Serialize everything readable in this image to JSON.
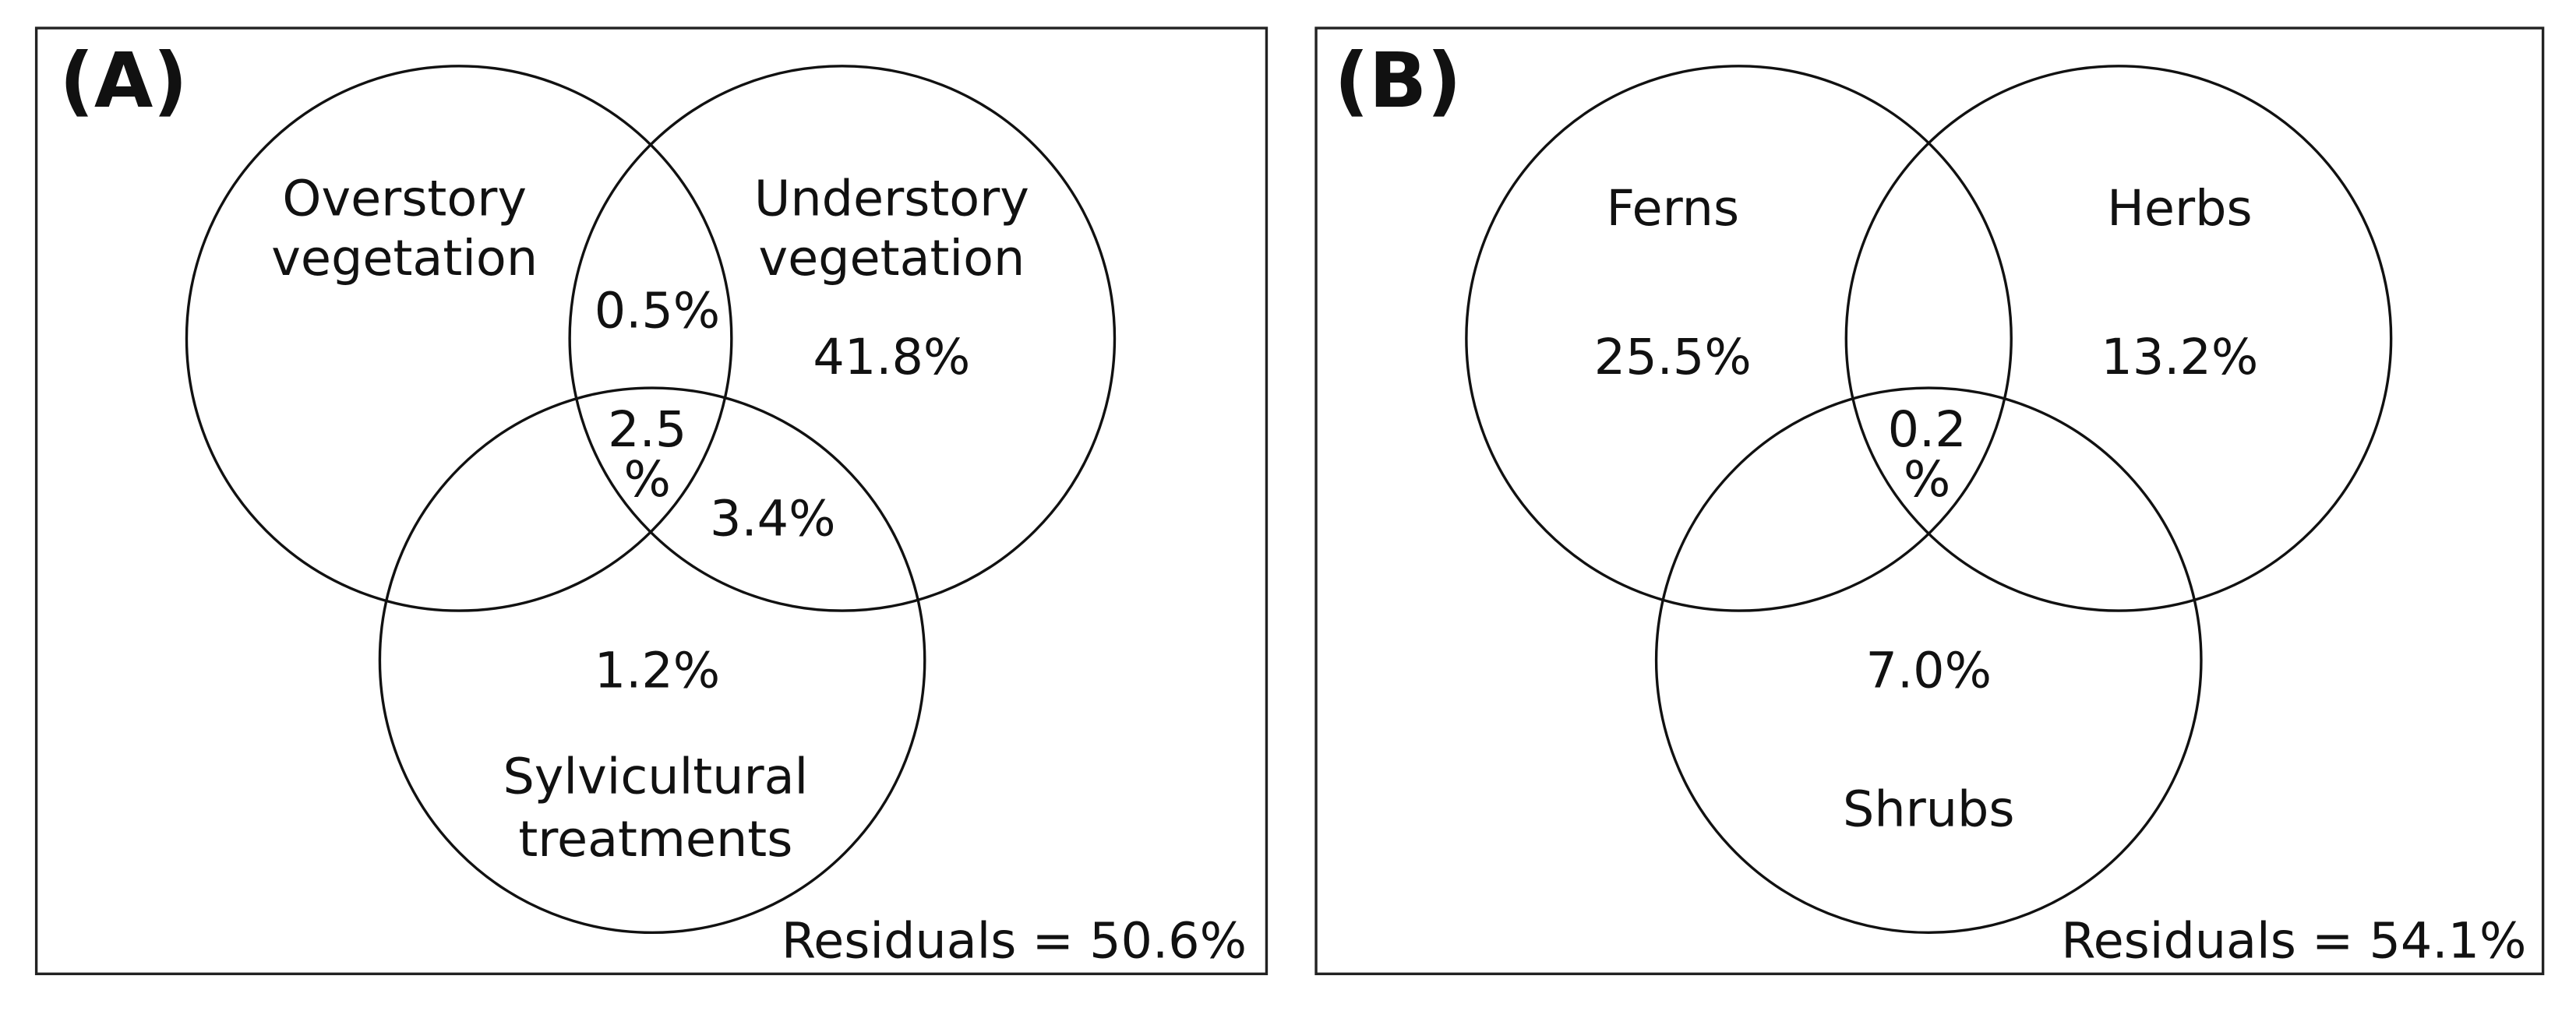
{
  "panels": [
    {
      "label": "(A)",
      "circles": [
        {
          "lines": [
            "Overstory",
            "vegetation"
          ]
        },
        {
          "lines": [
            "Understory",
            "vegetation"
          ]
        },
        {
          "lines": [
            "Sylvicultural",
            "treatments"
          ]
        }
      ],
      "regions": [
        {
          "lines": [
            "0.5%"
          ]
        },
        {
          "lines": [
            "41.8%"
          ]
        },
        {
          "lines": [
            "2.5",
            "%"
          ]
        },
        {
          "lines": [
            "3.4%"
          ]
        },
        {
          "lines": [
            "1.2%"
          ]
        }
      ],
      "residuals": "Residuals = 50.6%"
    },
    {
      "label": "(B)",
      "circles": [
        {
          "lines": [
            "Ferns"
          ]
        },
        {
          "lines": [
            "Herbs"
          ]
        },
        {
          "lines": [
            "Shrubs"
          ]
        }
      ],
      "regions": [
        {
          "lines": [
            "25.5%"
          ]
        },
        {
          "lines": [
            "13.2%"
          ]
        },
        {
          "lines": [
            "0.2",
            "%"
          ]
        },
        {
          "lines": [
            "7.0%"
          ]
        }
      ],
      "residuals": "Residuals = 54.1%"
    }
  ]
}
